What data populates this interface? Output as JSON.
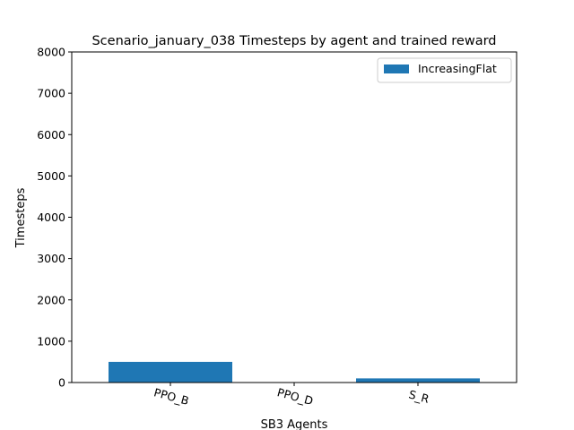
{
  "chart_data": {
    "type": "bar",
    "title": "Scenario_january_038 Timesteps by agent and trained reward",
    "xlabel": "SB3 Agents",
    "ylabel": "Timesteps",
    "categories": [
      "PPO_B",
      "PPO_D",
      "S_R"
    ],
    "series": [
      {
        "name": "IncreasingFlat",
        "values": [
          500,
          0,
          100
        ],
        "color": "#1f77b4"
      }
    ],
    "ylim": [
      0,
      8000
    ],
    "yticks": [
      0,
      1000,
      2000,
      3000,
      4000,
      5000,
      6000,
      7000,
      8000
    ],
    "grid": false,
    "legend_position": "top-right"
  }
}
